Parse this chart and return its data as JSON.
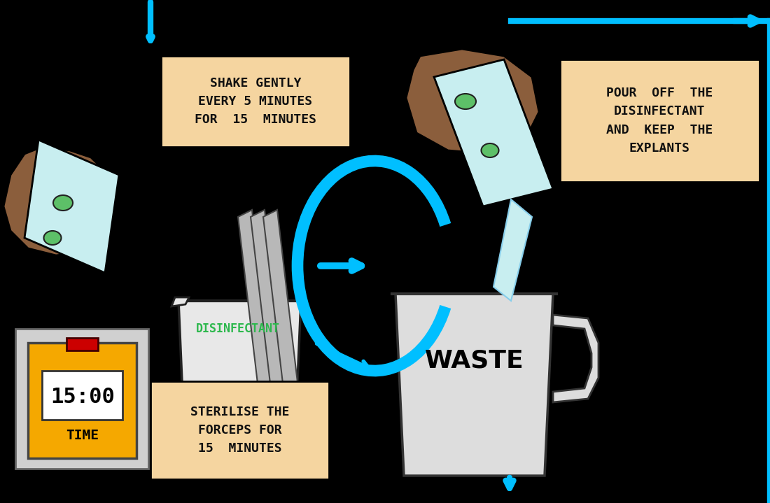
{
  "background_color": "#000000",
  "label_box_color": "#F5D5A0",
  "label_box_edge": "#000000",
  "cyan_arrow_color": "#00BFFF",
  "hand_color": "#8B5E3C",
  "container_color": "#E8E8E8",
  "container_edge": "#222222",
  "explant_color": "#B0E8D0",
  "explant_edge": "#222222",
  "green_spot_color": "#5DC068",
  "timer_body": "#F5A800",
  "timer_screen": "#FFFFFF",
  "timer_text_color": "#000000",
  "timer_label_color": "#000000",
  "disinfectant_text_color": "#2DB84D",
  "waste_text_color": "#000000",
  "text_label1": "SHAKE GENTLY\nEVERY 5 MINUTES\nFOR  15  MINUTES",
  "text_label2": "POUR  OFF  THE\nDISINFECTANT\nAND  KEEP  THE\nEXPLANTS",
  "text_label3": "STERILISE THE\nFORCEPS FOR\n15  MINUTES",
  "text_disinfectant": "DISINFECTANT",
  "text_waste": "WASTE",
  "text_time": "15:00",
  "text_time_label": "TIME",
  "forceps_color": "#AAAAAA",
  "forceps_edge": "#333333",
  "waste_cup_color": "#DDDDDD",
  "waste_cup_edge": "#333333"
}
